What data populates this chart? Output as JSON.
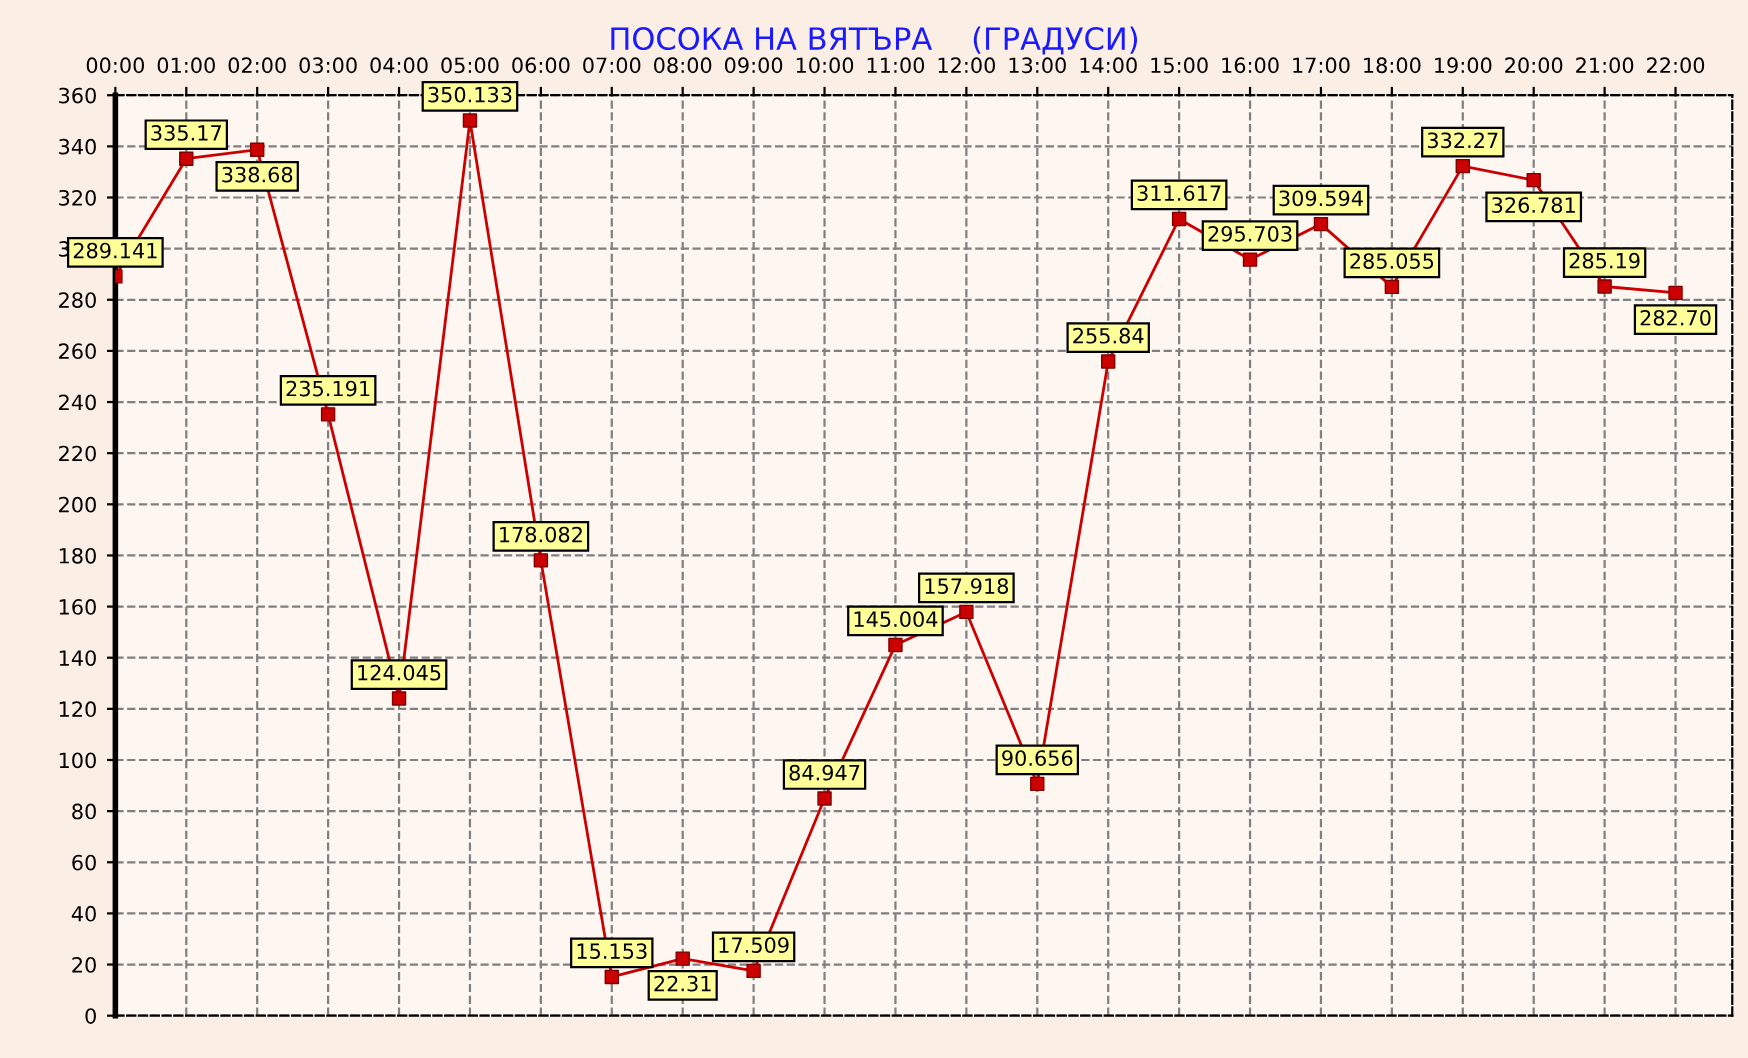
{
  "chart_data": {
    "type": "line",
    "title": "ПОСОКА НА ВЯТЪРА    (ГРАДУСИ)",
    "categories": [
      "00:00",
      "01:00",
      "02:00",
      "03:00",
      "04:00",
      "05:00",
      "06:00",
      "07:00",
      "08:00",
      "09:00",
      "10:00",
      "11:00",
      "12:00",
      "13:00",
      "14:00",
      "15:00",
      "16:00",
      "17:00",
      "18:00",
      "19:00",
      "20:00",
      "21:00",
      "22:00"
    ],
    "series": [
      {
        "color": "#cc0000",
        "values": [
          289.141,
          335.17,
          338.68,
          235.191,
          124.045,
          350.133,
          178.082,
          15.153,
          22.31,
          17.509,
          84.947,
          145.004,
          157.918,
          90.656,
          255.84,
          311.617,
          295.703,
          309.594,
          285.055,
          332.27,
          326.781,
          285.19,
          282.7
        ],
        "value_labels": [
          "289.141",
          "335.17",
          "338.68",
          "235.191",
          "124.045",
          "350.133",
          "178.082",
          "15.153",
          "22.31",
          "17.509",
          "84.947",
          "145.004",
          "157.918",
          "90.656",
          "255.84",
          "311.617",
          "295.703",
          "309.594",
          "285.055",
          "332.27",
          "326.781",
          "285.19",
          "282.70"
        ]
      }
    ],
    "ylim": [
      0,
      360
    ],
    "yticks": [
      0,
      20,
      40,
      60,
      80,
      100,
      120,
      140,
      160,
      180,
      200,
      220,
      240,
      260,
      280,
      300,
      320,
      340,
      360
    ],
    "grid": true,
    "marker": "square",
    "line_style": "solid"
  }
}
